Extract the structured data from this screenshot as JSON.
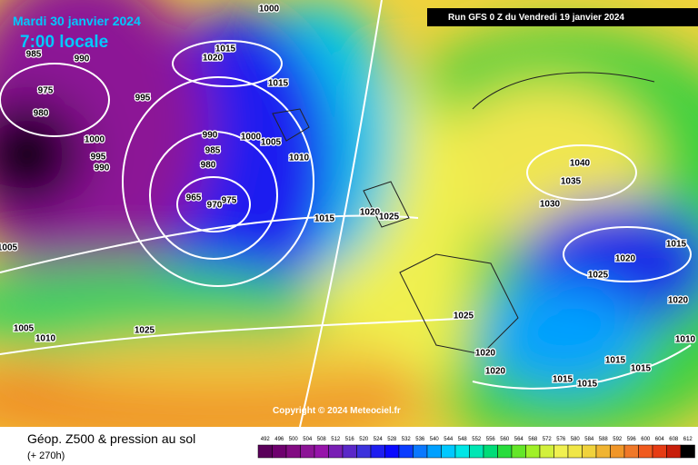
{
  "header": {
    "date": "Mardi 30 janvier 2024",
    "time": "7:00 locale",
    "run": "Run GFS 0 Z du Vendredi 19 janvier 2024"
  },
  "copyright": "Copyright © 2024 Meteociel.fr",
  "legend": {
    "title": "Géop. Z500 & pression au sol",
    "subtitle": "(+ 270h)",
    "labels": [
      "492",
      "496",
      "500",
      "504",
      "508",
      "512",
      "516",
      "520",
      "524",
      "528",
      "532",
      "536",
      "540",
      "544",
      "548",
      "552",
      "556",
      "560",
      "564",
      "568",
      "572",
      "576",
      "580",
      "584",
      "588",
      "592",
      "596",
      "600",
      "604",
      "608",
      "612"
    ],
    "colors": [
      "#5a005a",
      "#6e006e",
      "#820a82",
      "#8c1496",
      "#9614aa",
      "#781eb4",
      "#5a28c8",
      "#3c32dc",
      "#1e1ef0",
      "#0a0aff",
      "#0a3cff",
      "#0a78ff",
      "#00a0ff",
      "#00c8ff",
      "#00e6e6",
      "#00e6b4",
      "#00dc78",
      "#28dc3c",
      "#64e628",
      "#a0f028",
      "#d2f03c",
      "#f0f050",
      "#f0e646",
      "#f0d23c",
      "#f0b432",
      "#f09628",
      "#f07828",
      "#f05a1e",
      "#e63c14",
      "#c81e0a",
      "#000000"
    ]
  },
  "isobars": [
    "1000",
    "985",
    "990",
    "975",
    "980",
    "1000",
    "995",
    "990",
    "995",
    "1015",
    "1020",
    "1015",
    "990",
    "1000",
    "1005",
    "985",
    "980",
    "1010",
    "965",
    "975",
    "970",
    "1015",
    "1020",
    "1025",
    "1005",
    "1025",
    "1005",
    "1010",
    "1040",
    "1035",
    "1030",
    "1015",
    "1020",
    "1025",
    "1020",
    "1025",
    "1020",
    "1020",
    "1015",
    "1015",
    "1015",
    "1015",
    "1010"
  ]
}
